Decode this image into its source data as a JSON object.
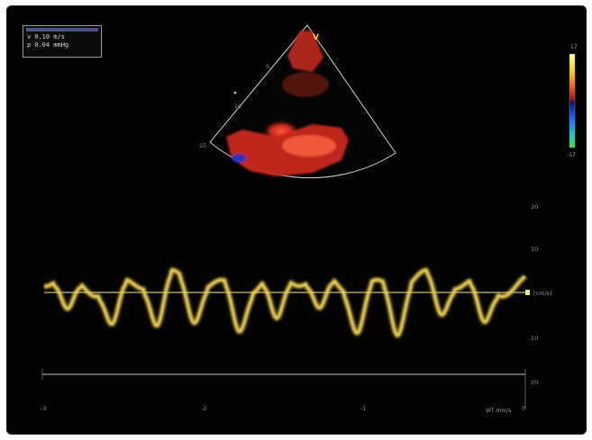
{
  "readout": {
    "v_label": "v",
    "v_value": "0.10 m/s",
    "p_label": "p",
    "p_value": "0.04 mmHg"
  },
  "sector": {
    "marker_label": "V",
    "depth_labels": [
      "5",
      "10",
      "15"
    ]
  },
  "color_scale": {
    "top_label": "17",
    "bottom_label": "-17"
  },
  "spectrum": {
    "unit_label": "[cm/s]",
    "velocity_ticks": [
      "20",
      "10",
      "10",
      "20"
    ],
    "time_ticks": [
      "-3",
      "-2",
      "-1",
      "0"
    ],
    "corner_note": "WT mm/s"
  },
  "colors": {
    "doppler_red": "#c8281c",
    "trace_yellow": "#e6c21e",
    "baseline": "#f0e8a8"
  }
}
